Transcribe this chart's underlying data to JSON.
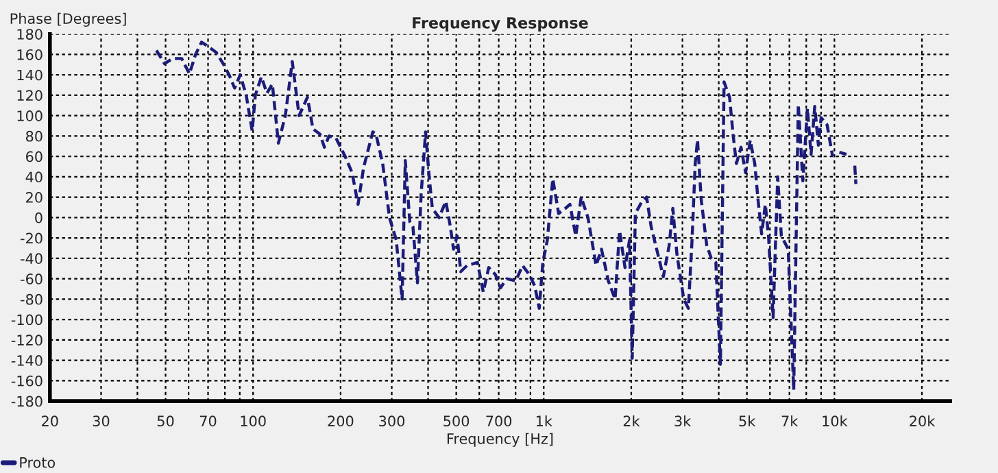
{
  "chart_data": {
    "type": "line",
    "title": "Frequency Response",
    "xlabel": "Frequency [Hz]",
    "ylabel": "Phase [Degrees]",
    "log": "x",
    "xlim": [
      20,
      25000
    ],
    "ylim": [
      -180,
      180
    ],
    "xticks": [
      20,
      30,
      {
        "value": 40,
        "label": null
      },
      50,
      {
        "value": 60,
        "label": null
      },
      70,
      {
        "value": 80,
        "label": null
      },
      {
        "value": 90,
        "label": null
      },
      100,
      200,
      300,
      {
        "value": 400,
        "label": null
      },
      500,
      {
        "value": 600,
        "label": null
      },
      700,
      {
        "value": 800,
        "label": null
      },
      {
        "value": 900,
        "label": null
      },
      {
        "value": 1000,
        "label": "1k"
      },
      {
        "value": 2000,
        "label": "2k"
      },
      {
        "value": 3000,
        "label": "3k"
      },
      {
        "value": 4000,
        "label": null
      },
      {
        "value": 5000,
        "label": "5k"
      },
      {
        "value": 6000,
        "label": null
      },
      {
        "value": 7000,
        "label": "7k"
      },
      {
        "value": 8000,
        "label": null
      },
      {
        "value": 9000,
        "label": null
      },
      {
        "value": 10000,
        "label": "10k"
      },
      {
        "value": 20000,
        "label": "20k"
      }
    ],
    "yticks": [
      -180,
      -160,
      -140,
      -120,
      -100,
      -80,
      -60,
      -40,
      -20,
      0,
      20,
      40,
      60,
      80,
      100,
      120,
      140,
      160,
      180
    ],
    "grid": true,
    "legend": "bottom left",
    "line_style": "dashed",
    "marker": "none",
    "series": [
      {
        "name": "Proto",
        "color": "#1c1c7a",
        "x": [
          46.5,
          49.6,
          52.8,
          56.8,
          60.4,
          63.4,
          66.5,
          69.9,
          74.7,
          78.9,
          82.7,
          86.4,
          90.3,
          94.7,
          99.3,
          101.8,
          106.8,
          111.6,
          116.5,
          122.2,
          129.1,
          136.4,
          144.0,
          153.8,
          160.7,
          169.7,
          176.0,
          182.5,
          192.8,
          207.4,
          219.1,
          229.7,
          240.0,
          258.1,
          264.7,
          279.2,
          294.6,
          310.8,
          325.6,
          333.9,
          346.1,
          354.8,
          367.7,
          378.4,
          392.2,
          403.5,
          413.8,
          436.4,
          460.4,
          477.2,
          489.3,
          503.5,
          518.1,
          544.8,
          591.5,
          619.4,
          646.6,
          682.1,
          709.6,
          745.9,
          801.3,
          845.4,
          892.1,
          931.0,
          965.0,
          992.9,
          1028.9,
          1074.0,
          1125.0,
          1187.0,
          1230.3,
          1288.8,
          1345.3,
          1419.4,
          1513.6,
          1580.1,
          1667.3,
          1759.2,
          1823.2,
          1903.4,
          1972.6,
          2015.3,
          2066.3,
          2179.7,
          2259.1,
          2341.4,
          2470.3,
          2578.4,
          2701.7,
          2779.9,
          2872,
          3032,
          3145,
          3237,
          3320,
          3381,
          3480,
          3636,
          3770,
          3909,
          4053,
          4172,
          4358,
          4486,
          4601,
          4772,
          4948,
          5131,
          5320,
          5458,
          5619,
          5784,
          5933,
          6152,
          6380,
          6567,
          6934,
          7243,
          7511,
          7787,
          8074,
          8311,
          8556,
          8807,
          9000,
          9436,
          9856,
          10200,
          10400,
          11000,
          11200,
          11750,
          11850
        ],
        "values": [
          164,
          151,
          156,
          156,
          141,
          160,
          172,
          168,
          162,
          151,
          140,
          127,
          140,
          120,
          85,
          120,
          138,
          122,
          131,
          73,
          100,
          153,
          100,
          118,
          87,
          82,
          69,
          80,
          78,
          60,
          44,
          13,
          49,
          84,
          82,
          53,
          0,
          -22,
          -80,
          56,
          -4,
          -9,
          -64,
          22,
          84,
          40,
          9,
          0,
          16,
          -9,
          -31,
          -18,
          -53,
          -47,
          -44,
          -73,
          -49,
          -56,
          -69,
          -60,
          -62,
          -47,
          -56,
          -67,
          -89,
          -44,
          -22,
          38,
          4,
          9,
          13,
          -18,
          20,
          0,
          -47,
          -31,
          -62,
          -80,
          -13,
          -49,
          -22,
          -138,
          4,
          16,
          20,
          -9,
          -36,
          -58,
          -27,
          9,
          -36,
          -80,
          -89,
          -22,
          53,
          76,
          18,
          -27,
          -40,
          -44,
          -144,
          133,
          118,
          80,
          53,
          69,
          44,
          76,
          53,
          18,
          -16,
          13,
          -18,
          -98,
          40,
          -18,
          -31,
          -169,
          111,
          36,
          107,
          62,
          109,
          71,
          98,
          91,
          60,
          null,
          64,
          62,
          null,
          51,
          33
        ]
      }
    ]
  }
}
